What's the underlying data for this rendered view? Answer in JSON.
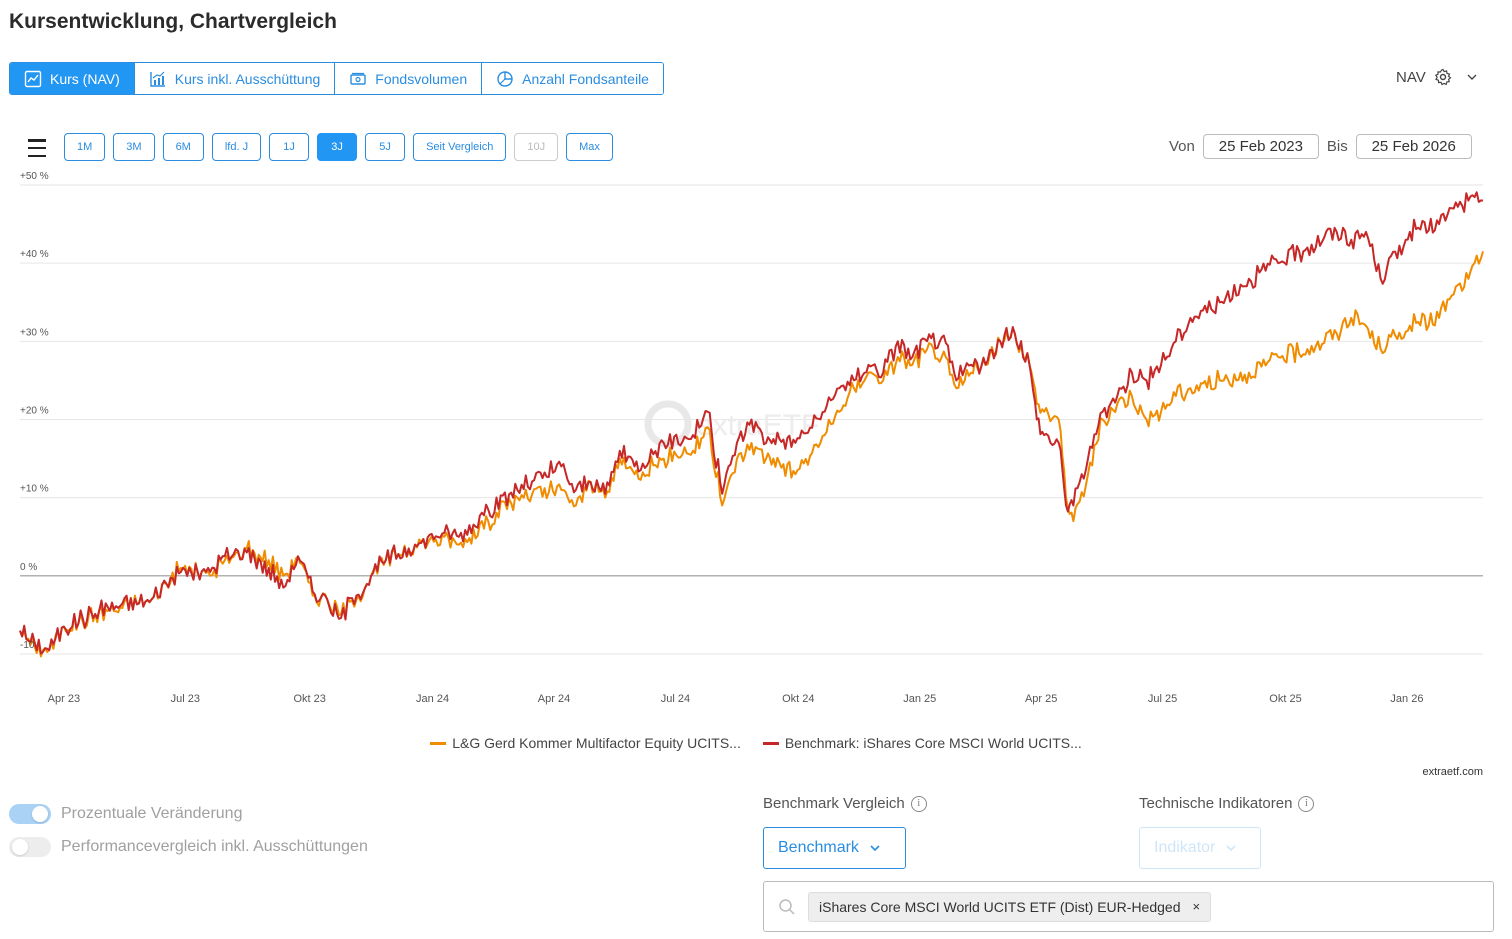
{
  "page": {
    "title": "Kursentwicklung, Chartvergleich"
  },
  "view_tabs": [
    {
      "label": "Kurs (NAV)",
      "icon": "line-chart-icon",
      "active": true
    },
    {
      "label": "Kurs inkl. Ausschüttung",
      "icon": "bar-line-chart-icon",
      "active": false
    },
    {
      "label": "Fondsvolumen",
      "icon": "money-icon",
      "active": false
    },
    {
      "label": "Anzahl Fondsanteile",
      "icon": "pie-chart-icon",
      "active": false
    }
  ],
  "nav_select": {
    "label": "NAV",
    "icon": "gear-icon"
  },
  "range_buttons": [
    {
      "label": "1M",
      "state": "normal"
    },
    {
      "label": "3M",
      "state": "normal"
    },
    {
      "label": "6M",
      "state": "normal"
    },
    {
      "label": "lfd. J",
      "state": "normal"
    },
    {
      "label": "1J",
      "state": "normal"
    },
    {
      "label": "3J",
      "state": "active"
    },
    {
      "label": "5J",
      "state": "normal"
    },
    {
      "label": "Seit Vergleich",
      "state": "normal"
    },
    {
      "label": "10J",
      "state": "disabled"
    },
    {
      "label": "Max",
      "state": "normal"
    }
  ],
  "date_range": {
    "from_label": "Von",
    "from": "25 Feb 2023",
    "to_label": "Bis",
    "to": "25 Feb 2026"
  },
  "chart_data": {
    "type": "line",
    "y_ticks": [
      "+50 %",
      "+40 %",
      "+30 %",
      "+20 %",
      "+10 %",
      "0 %",
      "-10"
    ],
    "y_tick_values": [
      50,
      40,
      30,
      20,
      10,
      0,
      -10
    ],
    "ylim": [
      -10,
      50
    ],
    "x_ticks": [
      "Apr 23",
      "Jul 23",
      "Okt 23",
      "Jan 24",
      "Apr 24",
      "Jul 24",
      "Okt 24",
      "Jan 25",
      "Apr 25",
      "Jul 25",
      "Okt 25",
      "Jan 26"
    ],
    "x_tick_positions": [
      0.03,
      0.113,
      0.198,
      0.282,
      0.365,
      0.448,
      0.532,
      0.615,
      0.698,
      0.781,
      0.865,
      0.948
    ],
    "watermark": "extraETF",
    "grid": true,
    "legend_position": "bottom",
    "series": [
      {
        "name": "L&G Gerd Kommer Multifactor Equity UCITS...",
        "color": "#f08c00",
        "x": [
          0,
          0.01,
          0.02,
          0.03,
          0.06,
          0.09,
          0.1,
          0.11,
          0.13,
          0.14,
          0.155,
          0.17,
          0.18,
          0.19,
          0.2,
          0.21,
          0.218,
          0.23,
          0.24,
          0.25,
          0.27,
          0.29,
          0.3,
          0.32,
          0.34,
          0.37,
          0.38,
          0.39,
          0.4,
          0.41,
          0.42,
          0.44,
          0.46,
          0.47,
          0.48,
          0.49,
          0.5,
          0.51,
          0.515,
          0.53,
          0.55,
          0.56,
          0.57,
          0.58,
          0.59,
          0.6,
          0.61,
          0.62,
          0.63,
          0.64,
          0.65,
          0.66,
          0.67,
          0.68,
          0.69,
          0.695,
          0.7,
          0.71,
          0.715,
          0.72,
          0.73,
          0.74,
          0.75,
          0.76,
          0.77,
          0.78,
          0.79,
          0.8,
          0.82,
          0.84,
          0.86,
          0.88,
          0.9,
          0.91,
          0.92,
          0.93,
          0.95,
          0.97,
          0.98,
          0.99,
          1.0
        ],
        "y": [
          -7,
          -9,
          -9.5,
          -6.5,
          -4.5,
          -3,
          -1,
          1,
          0,
          2,
          3.5,
          2,
          0,
          2.5,
          -2.5,
          -3,
          -5,
          -3,
          0,
          2,
          4,
          5,
          4,
          7,
          10,
          11,
          9,
          12,
          10,
          15,
          13,
          15,
          16,
          19,
          9,
          15,
          17,
          15,
          15,
          13,
          18,
          21,
          24,
          26,
          25,
          28,
          27,
          29,
          28,
          24,
          26,
          27,
          30,
          31,
          27,
          22,
          21,
          20,
          10,
          7,
          13,
          20,
          22,
          23,
          20,
          21,
          23,
          24,
          25,
          26,
          28,
          29,
          31,
          33,
          32,
          29,
          32,
          33,
          36,
          38,
          41.5
        ]
      },
      {
        "name": "Benchmark: iShares Core MSCI World UCITS...",
        "color": "#c62828",
        "x": [
          0,
          0.01,
          0.02,
          0.03,
          0.06,
          0.09,
          0.1,
          0.11,
          0.13,
          0.14,
          0.155,
          0.17,
          0.18,
          0.19,
          0.2,
          0.21,
          0.218,
          0.23,
          0.24,
          0.25,
          0.27,
          0.29,
          0.3,
          0.32,
          0.34,
          0.37,
          0.38,
          0.39,
          0.4,
          0.41,
          0.42,
          0.44,
          0.46,
          0.47,
          0.48,
          0.49,
          0.5,
          0.51,
          0.515,
          0.53,
          0.55,
          0.56,
          0.57,
          0.58,
          0.59,
          0.6,
          0.61,
          0.62,
          0.63,
          0.64,
          0.65,
          0.66,
          0.67,
          0.68,
          0.69,
          0.695,
          0.7,
          0.71,
          0.715,
          0.72,
          0.73,
          0.74,
          0.75,
          0.76,
          0.77,
          0.78,
          0.79,
          0.8,
          0.82,
          0.84,
          0.86,
          0.88,
          0.9,
          0.91,
          0.92,
          0.93,
          0.95,
          0.97,
          0.98,
          0.99,
          1.0
        ],
        "y": [
          -7,
          -8.5,
          -9.5,
          -6.5,
          -4,
          -3,
          -1,
          0.5,
          0.5,
          2.5,
          3,
          1,
          -1.5,
          2.5,
          -2,
          -3,
          -5.5,
          -2.5,
          0,
          2,
          4,
          5.5,
          5,
          8.5,
          11,
          14,
          11,
          12,
          10.5,
          16,
          14,
          17,
          18,
          21,
          10.5,
          17,
          20,
          17,
          17.5,
          17,
          21,
          24,
          25,
          27,
          26,
          30,
          28,
          30,
          30.5,
          25,
          27,
          27,
          30,
          31,
          27,
          20,
          18,
          17,
          9,
          9,
          15,
          21,
          23,
          26,
          25,
          27,
          30,
          33,
          35,
          38,
          40,
          42,
          44,
          43,
          44,
          38,
          44,
          45,
          47,
          48,
          48
        ]
      }
    ]
  },
  "legend": [
    {
      "label": "L&G Gerd Kommer Multifactor Equity UCITS...",
      "color": "#f08c00"
    },
    {
      "label": "Benchmark: iShares Core MSCI World UCITS...",
      "color": "#c62828"
    }
  ],
  "credit": "extraetf.com",
  "toggles": [
    {
      "label": "Prozentuale Veränderung",
      "on": true
    },
    {
      "label": "Performancevergleich inkl. Ausschüttungen",
      "on": false
    }
  ],
  "benchmark_section": {
    "label": "Benchmark Vergleich",
    "button": "Benchmark"
  },
  "indicator_section": {
    "label": "Technische Indikatoren",
    "button": "Indikator"
  },
  "benchmark_tag": {
    "label": "iShares Core MSCI World UCITS ETF (Dist) EUR-Hedged",
    "close": "×"
  }
}
